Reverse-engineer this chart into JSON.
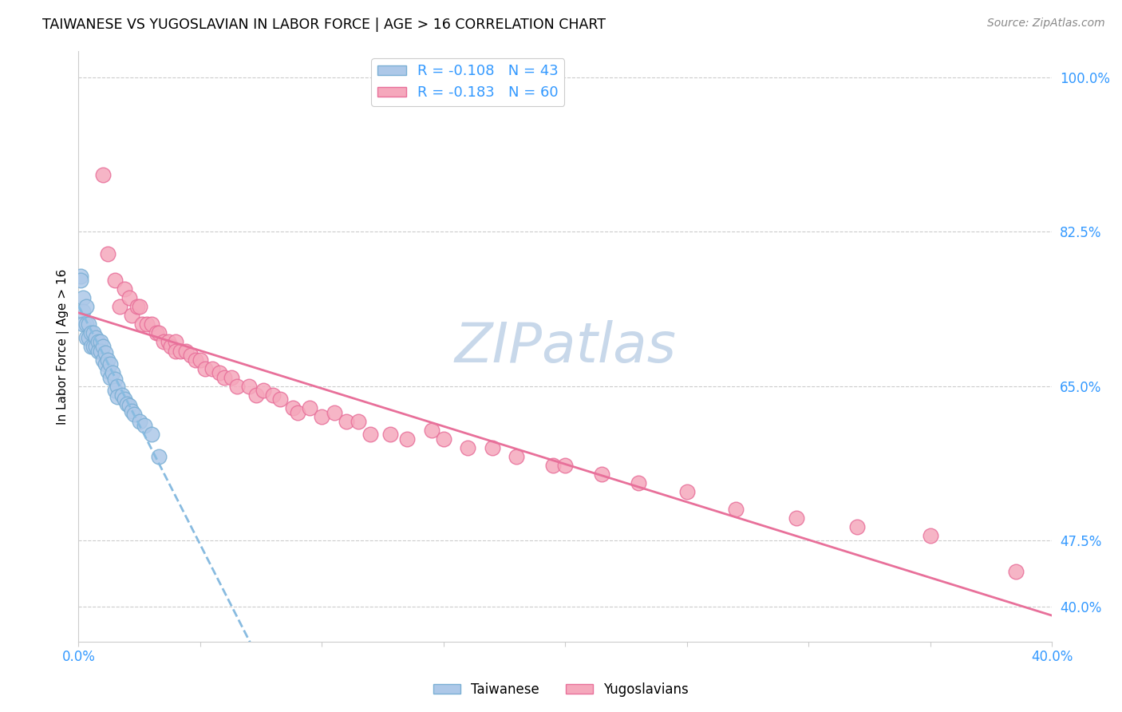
{
  "title": "TAIWANESE VS YUGOSLAVIAN IN LABOR FORCE | AGE > 16 CORRELATION CHART",
  "source": "Source: ZipAtlas.com",
  "ylabel": "In Labor Force | Age > 16",
  "xlim": [
    0.0,
    0.4
  ],
  "ylim": [
    0.36,
    1.03
  ],
  "xtick_pos": [
    0.0,
    0.05,
    0.1,
    0.15,
    0.2,
    0.25,
    0.3,
    0.35,
    0.4
  ],
  "xtick_labels": [
    "0.0%",
    "",
    "",
    "",
    "",
    "",
    "",
    "",
    "40.0%"
  ],
  "ytick_pos": [
    1.0,
    0.825,
    0.65,
    0.475,
    0.4
  ],
  "ytick_labels": [
    "100.0%",
    "82.5%",
    "65.0%",
    "47.5%",
    "40.0%"
  ],
  "grid_color": "#cccccc",
  "background_color": "#ffffff",
  "taiwanese_color": "#adc8e8",
  "yugoslavian_color": "#f5a8bc",
  "taiwanese_edge": "#7aafd4",
  "yugoslavian_edge": "#e8709a",
  "label_color": "#3399ff",
  "taiwanese_R": -0.108,
  "taiwanese_N": 43,
  "yugoslavian_R": -0.183,
  "yugoslavian_N": 60,
  "watermark": "ZIPatlas",
  "watermark_color": "#c8d8ea",
  "tw_legend_label": "Taiwanese",
  "yu_legend_label": "Yugoslavians",
  "taiwanese_points_x": [
    0.001,
    0.001,
    0.002,
    0.002,
    0.002,
    0.003,
    0.003,
    0.003,
    0.004,
    0.004,
    0.005,
    0.005,
    0.006,
    0.006,
    0.007,
    0.007,
    0.008,
    0.008,
    0.009,
    0.009,
    0.01,
    0.01,
    0.011,
    0.011,
    0.012,
    0.012,
    0.013,
    0.013,
    0.014,
    0.015,
    0.015,
    0.016,
    0.016,
    0.018,
    0.019,
    0.02,
    0.021,
    0.022,
    0.023,
    0.025,
    0.027,
    0.03,
    0.033
  ],
  "taiwanese_points_y": [
    0.775,
    0.77,
    0.75,
    0.735,
    0.72,
    0.74,
    0.72,
    0.705,
    0.72,
    0.705,
    0.71,
    0.695,
    0.71,
    0.695,
    0.705,
    0.695,
    0.7,
    0.69,
    0.7,
    0.69,
    0.695,
    0.68,
    0.688,
    0.675,
    0.68,
    0.667,
    0.675,
    0.66,
    0.665,
    0.658,
    0.645,
    0.65,
    0.638,
    0.64,
    0.635,
    0.63,
    0.628,
    0.622,
    0.618,
    0.61,
    0.605,
    0.595,
    0.57
  ],
  "yugoslavian_points_x": [
    0.01,
    0.012,
    0.015,
    0.017,
    0.019,
    0.021,
    0.022,
    0.024,
    0.025,
    0.026,
    0.028,
    0.03,
    0.032,
    0.033,
    0.035,
    0.037,
    0.038,
    0.04,
    0.04,
    0.042,
    0.044,
    0.046,
    0.048,
    0.05,
    0.052,
    0.055,
    0.058,
    0.06,
    0.063,
    0.065,
    0.07,
    0.073,
    0.076,
    0.08,
    0.083,
    0.088,
    0.09,
    0.095,
    0.1,
    0.105,
    0.11,
    0.115,
    0.12,
    0.128,
    0.135,
    0.145,
    0.15,
    0.16,
    0.17,
    0.18,
    0.195,
    0.2,
    0.215,
    0.23,
    0.25,
    0.27,
    0.295,
    0.32,
    0.35,
    0.385
  ],
  "yugoslavian_points_y": [
    0.89,
    0.8,
    0.77,
    0.74,
    0.76,
    0.75,
    0.73,
    0.74,
    0.74,
    0.72,
    0.72,
    0.72,
    0.71,
    0.71,
    0.7,
    0.7,
    0.695,
    0.7,
    0.69,
    0.69,
    0.69,
    0.685,
    0.68,
    0.68,
    0.67,
    0.67,
    0.665,
    0.66,
    0.66,
    0.65,
    0.65,
    0.64,
    0.645,
    0.64,
    0.635,
    0.625,
    0.62,
    0.625,
    0.615,
    0.62,
    0.61,
    0.61,
    0.595,
    0.595,
    0.59,
    0.6,
    0.59,
    0.58,
    0.58,
    0.57,
    0.56,
    0.56,
    0.55,
    0.54,
    0.53,
    0.51,
    0.5,
    0.49,
    0.48,
    0.44
  ]
}
